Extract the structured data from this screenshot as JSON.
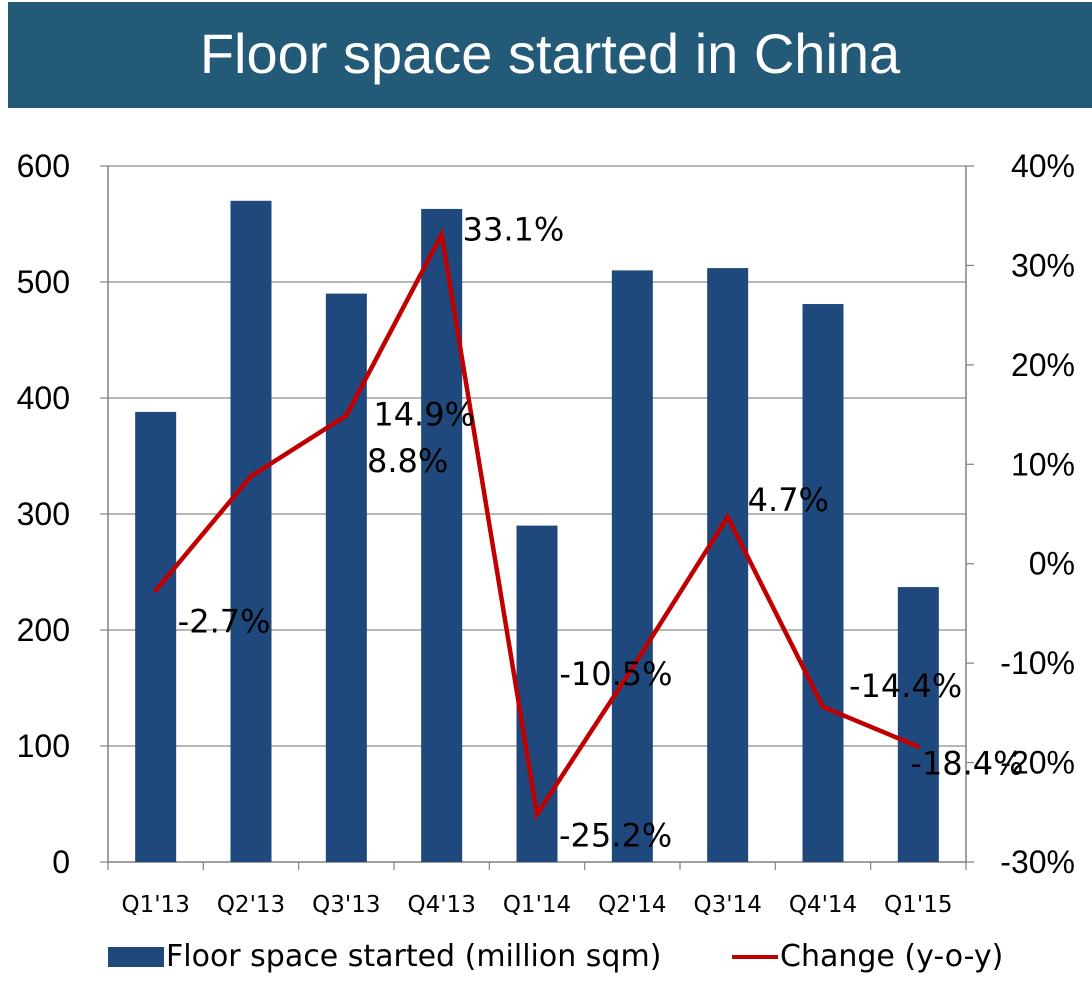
{
  "title": "Floor space started in China",
  "colors": {
    "banner": "#235a78",
    "bar": "#1f497d",
    "line": "#c00000",
    "axis": "#808080"
  },
  "legend": {
    "bar_label": "Floor space started (million sqm)",
    "line_label": "Change (y-o-y)"
  },
  "chart_data": {
    "type": "bar",
    "title": "Floor space started in China",
    "categories": [
      "Q1'13",
      "Q2'13",
      "Q3'13",
      "Q4'13",
      "Q1'14",
      "Q2'14",
      "Q3'14",
      "Q4'14",
      "Q1'15"
    ],
    "series": [
      {
        "name": "Floor space started (million sqm)",
        "type": "bar",
        "axis": "left",
        "values": [
          388,
          570,
          490,
          563,
          290,
          510,
          512,
          481,
          237
        ]
      },
      {
        "name": "Change (y-o-y)",
        "type": "line",
        "axis": "right",
        "values": [
          -2.7,
          8.8,
          14.9,
          33.1,
          -25.2,
          -10.5,
          4.7,
          -14.4,
          -18.4
        ],
        "data_labels": [
          "-2.7%",
          "8.8%",
          "14.9%",
          "33.1%",
          "-25.2%",
          "-10.5%",
          "4.7%",
          "-14.4%",
          "-18.4%"
        ]
      }
    ],
    "y_left": {
      "ylim": [
        0,
        600
      ],
      "ticks": [
        "0",
        "100",
        "200",
        "300",
        "400",
        "500",
        "600"
      ]
    },
    "y_right": {
      "ylim": [
        -30,
        40
      ],
      "ticks": [
        "-30%",
        "-20%",
        "-10%",
        "0%",
        "10%",
        "20%",
        "30%",
        "40%"
      ]
    },
    "grid": true,
    "legend_position": "bottom"
  }
}
